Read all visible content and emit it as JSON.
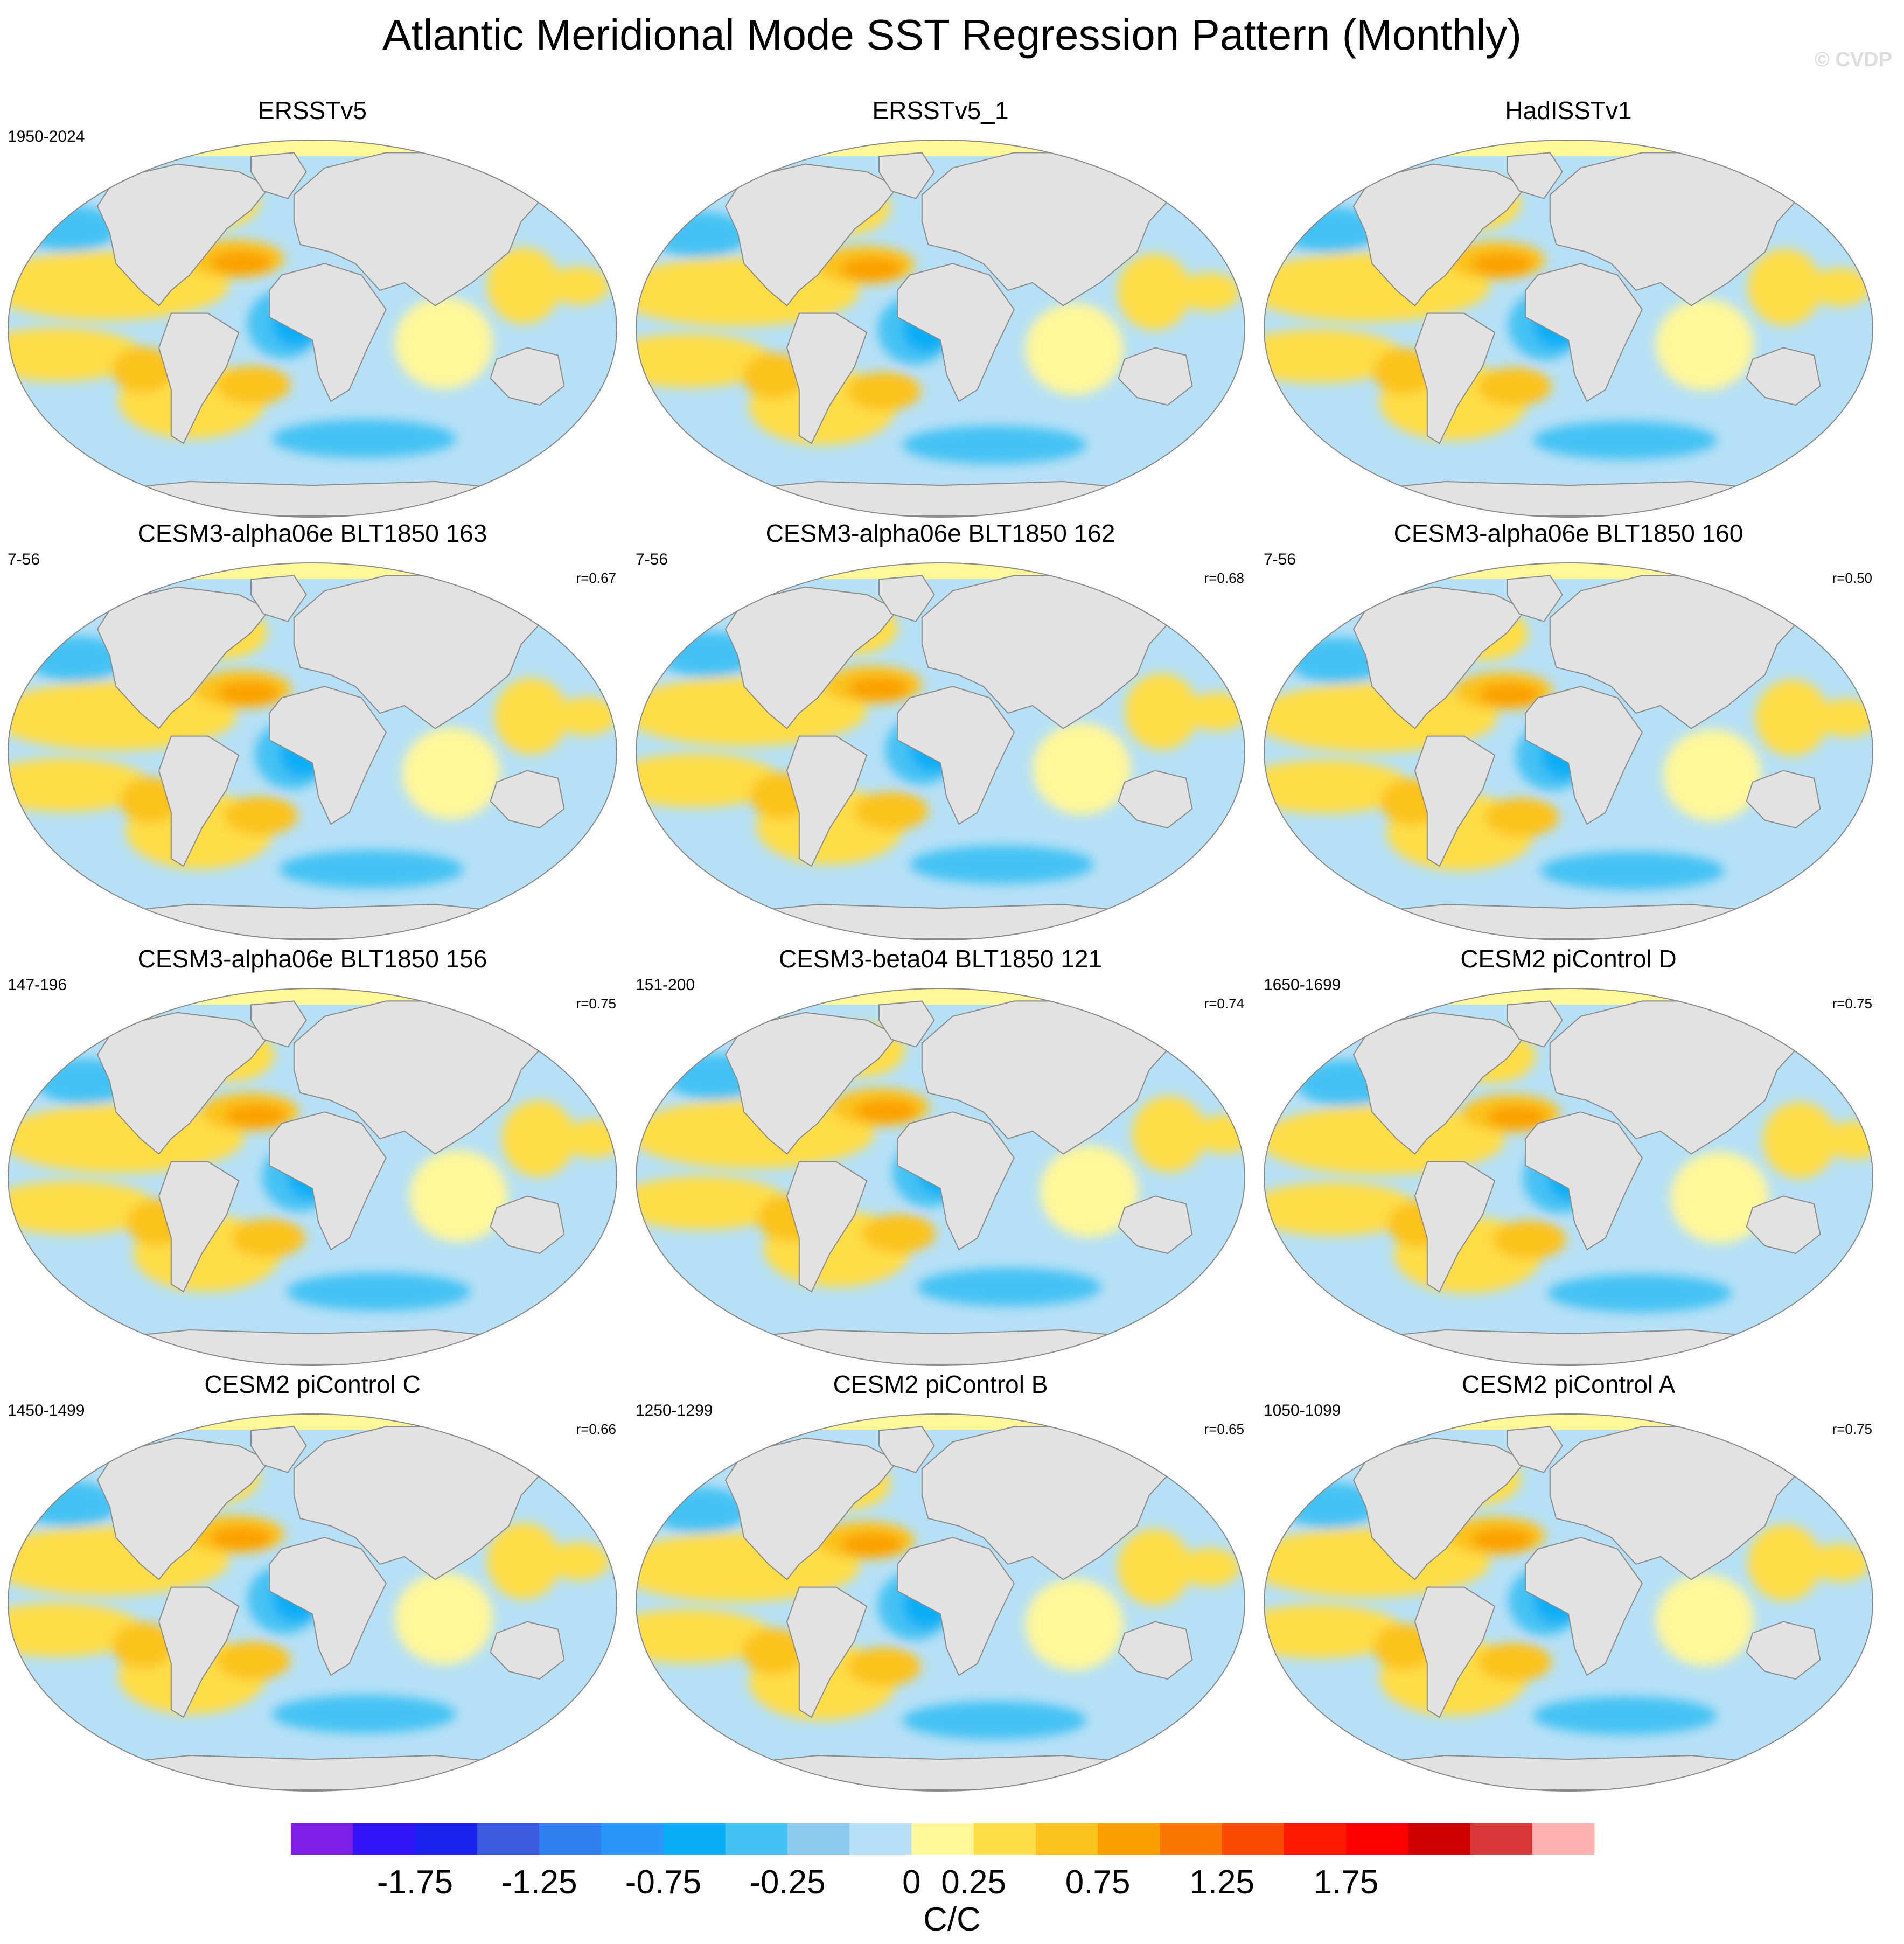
{
  "title": "Atlantic Meridional Mode SST Regression Pattern (Monthly)",
  "watermark": "© CVDP",
  "chart_data": {
    "type": "heatmap",
    "projection": "Robinson (global, Atlantic-centred)",
    "variable": "SST regression on Atlantic Meridional Mode index",
    "panels": [
      {
        "title": "ERSSTv5",
        "period": "1950-2024",
        "r": null
      },
      {
        "title": "ERSSTv5_1",
        "period": "",
        "r": null
      },
      {
        "title": "HadISSTv1",
        "period": "",
        "r": null
      },
      {
        "title": "CESM3-alpha06e BLT1850 163",
        "period": "7-56",
        "r": "r=0.67"
      },
      {
        "title": "CESM3-alpha06e BLT1850 162",
        "period": "7-56",
        "r": "r=0.68"
      },
      {
        "title": "CESM3-alpha06e BLT1850 160",
        "period": "7-56",
        "r": "r=0.50"
      },
      {
        "title": "CESM3-alpha06e BLT1850 156",
        "period": "147-196",
        "r": "r=0.75"
      },
      {
        "title": "CESM3-beta04 BLT1850 121",
        "period": "151-200",
        "r": "r=0.74"
      },
      {
        "title": "CESM2 piControl D",
        "period": "1650-1699",
        "r": "r=0.75"
      },
      {
        "title": "CESM2 piControl C",
        "period": "1450-1499",
        "r": "r=0.66"
      },
      {
        "title": "CESM2 piControl B",
        "period": "1250-1299",
        "r": "r=0.65"
      },
      {
        "title": "CESM2 piControl A",
        "period": "1050-1099",
        "r": "r=0.75"
      }
    ],
    "colorbar": {
      "units": "C/C",
      "levels": [
        -2.0,
        -1.75,
        -1.5,
        -1.25,
        -1.0,
        -0.75,
        -0.5,
        -0.25,
        0.0,
        0.25,
        0.5,
        0.75,
        1.0,
        1.25,
        1.5,
        1.75,
        2.0
      ],
      "tick_labels": [
        "-1.75",
        "-1.25",
        "-0.75",
        "-0.25",
        "0",
        "0.25",
        "0.75",
        "1.25",
        "1.75"
      ],
      "colors": [
        "#7e1fe8",
        "#3113f5",
        "#1a22f0",
        "#3a5be0",
        "#2f7ff0",
        "#2a95f8",
        "#07aef6",
        "#44c2f4",
        "#8ccbed",
        "#b6e0f5",
        "#fff79a",
        "#fedd47",
        "#fcc21e",
        "#fba000",
        "#f97600",
        "#f74a00",
        "#ff1a00",
        "#fd0000",
        "#cf0000",
        "#d83838",
        "#ffb0b0"
      ]
    }
  }
}
